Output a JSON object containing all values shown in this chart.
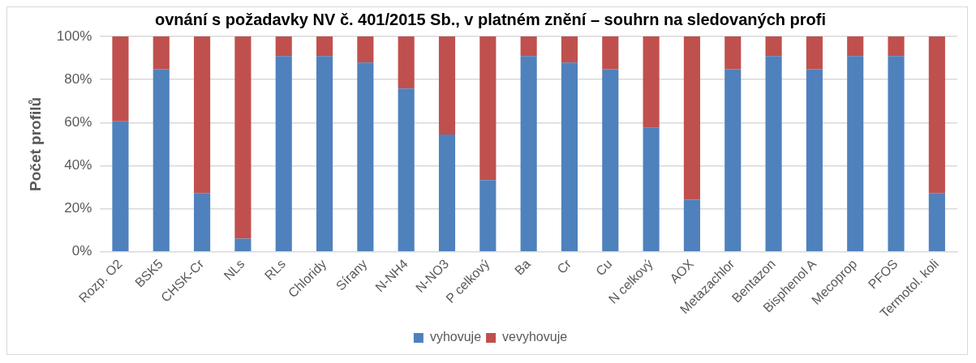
{
  "chart_data": {
    "type": "bar",
    "stacked": true,
    "title": "ovnání s požadavky NV č. 401/2015 Sb., v platném znění – souhrn na sledovaných profi",
    "ylabel": "Počet profilů",
    "categories": [
      "Rozp. O2",
      "BSK5",
      "CHSK-Cr",
      "NLs",
      "RLs",
      "Chloridy",
      "Sírany",
      "N-NH4",
      "N-NO3",
      "P celkový",
      "Ba",
      "Cr",
      "Cu",
      "N celkový",
      "AOX",
      "Metazachlor",
      "Bentazon",
      "Bisphenol A",
      "Mecoprop",
      "PFOS",
      "Termotol. koli"
    ],
    "series": [
      {
        "name": "vyhovuje",
        "color": "#4f81bd",
        "values": [
          60.6,
          84.8,
          27.3,
          6.1,
          90.9,
          90.9,
          87.9,
          75.8,
          54.5,
          33.3,
          90.9,
          87.9,
          84.8,
          57.6,
          24.2,
          84.8,
          90.9,
          84.8,
          90.9,
          90.9,
          27.3
        ]
      },
      {
        "name": "vevyhovuje",
        "color": "#c0504d",
        "values": [
          39.4,
          15.2,
          72.7,
          93.9,
          9.1,
          9.1,
          12.1,
          24.2,
          45.5,
          66.7,
          9.1,
          12.1,
          15.2,
          42.4,
          75.8,
          15.2,
          9.1,
          15.2,
          9.1,
          9.1,
          72.7
        ]
      }
    ],
    "ylim": [
      0,
      100
    ],
    "yticks": [
      {
        "value": 0,
        "label": "0%"
      },
      {
        "value": 20,
        "label": "20%"
      },
      {
        "value": 40,
        "label": "40%"
      },
      {
        "value": 60,
        "label": "60%"
      },
      {
        "value": 80,
        "label": "80%"
      },
      {
        "value": 100,
        "label": "100%"
      }
    ],
    "grid": "y",
    "legend": "bottom"
  }
}
